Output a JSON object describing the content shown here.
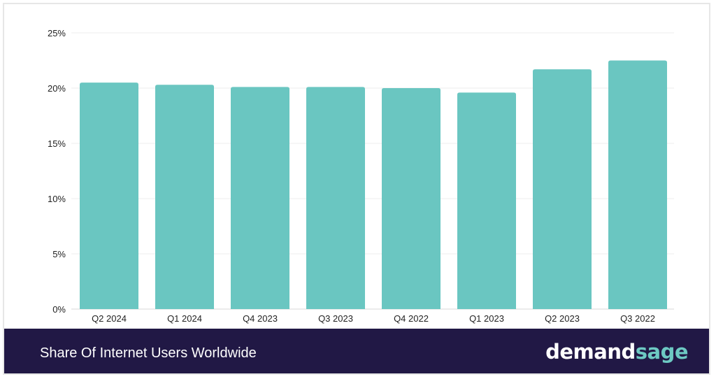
{
  "chart_data": {
    "type": "bar",
    "title": "Share Of Internet Users Worldwide",
    "categories": [
      "Q2 2024",
      "Q1 2024",
      "Q4 2023",
      "Q3 2023",
      "Q4 2022",
      "Q1 2023",
      "Q2 2023",
      "Q3 2022"
    ],
    "values": [
      20.5,
      20.3,
      20.1,
      20.1,
      20.0,
      19.6,
      21.7,
      22.5
    ],
    "ylim": [
      0,
      25
    ],
    "yticks": [
      0,
      5,
      10,
      15,
      20,
      25
    ],
    "ytick_labels": [
      "0%",
      "5%",
      "10%",
      "15%",
      "20%",
      "25%"
    ],
    "xlabel": "",
    "ylabel": "",
    "grid": true,
    "bar_color": "#6ac6c1"
  },
  "footer": {
    "title": "Share Of Internet Users Worldwide",
    "brand_part1": "demand",
    "brand_part2": "sage",
    "background": "#211845"
  }
}
